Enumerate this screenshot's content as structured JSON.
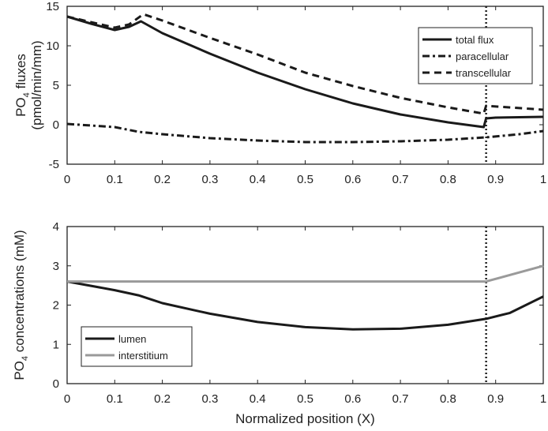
{
  "chart_data": [
    {
      "type": "line",
      "title": "",
      "xlabel": "",
      "ylabel": "PO4 fluxes (pmol/min/mm)",
      "ylabel_parts": {
        "main": "PO",
        "sub": "4",
        "rest": " fluxes",
        "line2": "(pmol/min/mm)"
      },
      "xlim": [
        0,
        1
      ],
      "ylim": [
        -5,
        15
      ],
      "xticks": [
        "0",
        "0.1",
        "0.2",
        "0.3",
        "0.4",
        "0.5",
        "0.6",
        "0.7",
        "0.8",
        "0.9",
        "1"
      ],
      "yticks": [
        "-5",
        "0",
        "5",
        "10",
        "15"
      ],
      "legend_position": "top-right",
      "vline_x": 0.88,
      "series": [
        {
          "name": "total flux",
          "style": "solid",
          "color": "#1a1a1a",
          "x": [
            0,
            0.05,
            0.1,
            0.13,
            0.155,
            0.2,
            0.3,
            0.4,
            0.5,
            0.6,
            0.7,
            0.8,
            0.875,
            0.88,
            0.9,
            1
          ],
          "y": [
            13.7,
            12.8,
            12.0,
            12.4,
            13.1,
            11.6,
            9.0,
            6.6,
            4.5,
            2.7,
            1.3,
            0.3,
            -0.3,
            0.8,
            0.9,
            1.0
          ]
        },
        {
          "name": "paracellular",
          "style": "dashdot",
          "color": "#1a1a1a",
          "x": [
            0,
            0.1,
            0.15,
            0.2,
            0.3,
            0.4,
            0.5,
            0.6,
            0.7,
            0.8,
            0.88,
            0.95,
            1
          ],
          "y": [
            0.1,
            -0.3,
            -0.9,
            -1.2,
            -1.7,
            -2.0,
            -2.2,
            -2.2,
            -2.1,
            -1.9,
            -1.6,
            -1.2,
            -0.8
          ]
        },
        {
          "name": "transcellular",
          "style": "dashed",
          "color": "#1a1a1a",
          "x": [
            0,
            0.1,
            0.13,
            0.16,
            0.2,
            0.3,
            0.4,
            0.5,
            0.6,
            0.7,
            0.8,
            0.875,
            0.88,
            1
          ],
          "y": [
            13.7,
            12.3,
            12.7,
            14.0,
            13.2,
            11.0,
            8.9,
            6.6,
            4.9,
            3.4,
            2.2,
            1.4,
            2.4,
            1.9
          ]
        }
      ]
    },
    {
      "type": "line",
      "title": "",
      "xlabel": "Normalized position (X)",
      "ylabel": "PO4 concentrations (mM)",
      "ylabel_parts": {
        "main": "PO",
        "sub": "4",
        "rest": " concentrations (mM)"
      },
      "xlim": [
        0,
        1
      ],
      "ylim": [
        0,
        4
      ],
      "xticks": [
        "0",
        "0.1",
        "0.2",
        "0.3",
        "0.4",
        "0.5",
        "0.6",
        "0.7",
        "0.8",
        "0.9",
        "1"
      ],
      "yticks": [
        "0",
        "1",
        "2",
        "3",
        "4"
      ],
      "legend_position": "bottom-left",
      "vline_x": 0.88,
      "series": [
        {
          "name": "lumen",
          "style": "solid",
          "color": "#1a1a1a",
          "x": [
            0,
            0.1,
            0.15,
            0.2,
            0.3,
            0.4,
            0.5,
            0.6,
            0.7,
            0.8,
            0.88,
            0.93,
            1
          ],
          "y": [
            2.6,
            2.38,
            2.25,
            2.05,
            1.78,
            1.57,
            1.44,
            1.38,
            1.4,
            1.5,
            1.65,
            1.8,
            2.22
          ]
        },
        {
          "name": "interstitium",
          "style": "solid",
          "color": "#9a9a9a",
          "x": [
            0,
            0.88,
            1
          ],
          "y": [
            2.6,
            2.6,
            3.0
          ]
        }
      ]
    }
  ]
}
